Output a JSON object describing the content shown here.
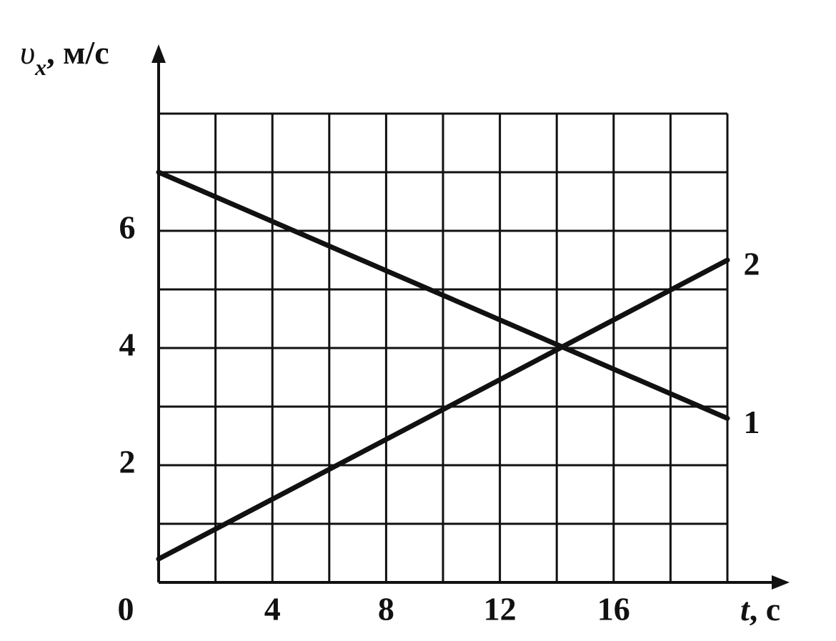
{
  "chart_data": {
    "type": "line",
    "ylabel": {
      "symbol": "υ",
      "subscript": "x",
      "unit": ", м/с"
    },
    "xlabel": {
      "symbol": "t",
      "unit": ", с"
    },
    "x": [
      0,
      20
    ],
    "series": [
      {
        "name": "1",
        "color": "#111111",
        "values": [
          7,
          2.8
        ]
      },
      {
        "name": "2",
        "color": "#111111",
        "values": [
          0.4,
          5.5
        ]
      }
    ],
    "xlim": [
      0,
      20
    ],
    "ylim": [
      0,
      8
    ],
    "xticks": [
      0,
      4,
      8,
      12,
      16
    ],
    "yticks": [
      2,
      4,
      6
    ],
    "xgrid": [
      0,
      2,
      4,
      6,
      8,
      10,
      12,
      14,
      16,
      18,
      20
    ],
    "ygrid": [
      0,
      1,
      2,
      3,
      4,
      5,
      6,
      7,
      8
    ],
    "grid": true
  }
}
